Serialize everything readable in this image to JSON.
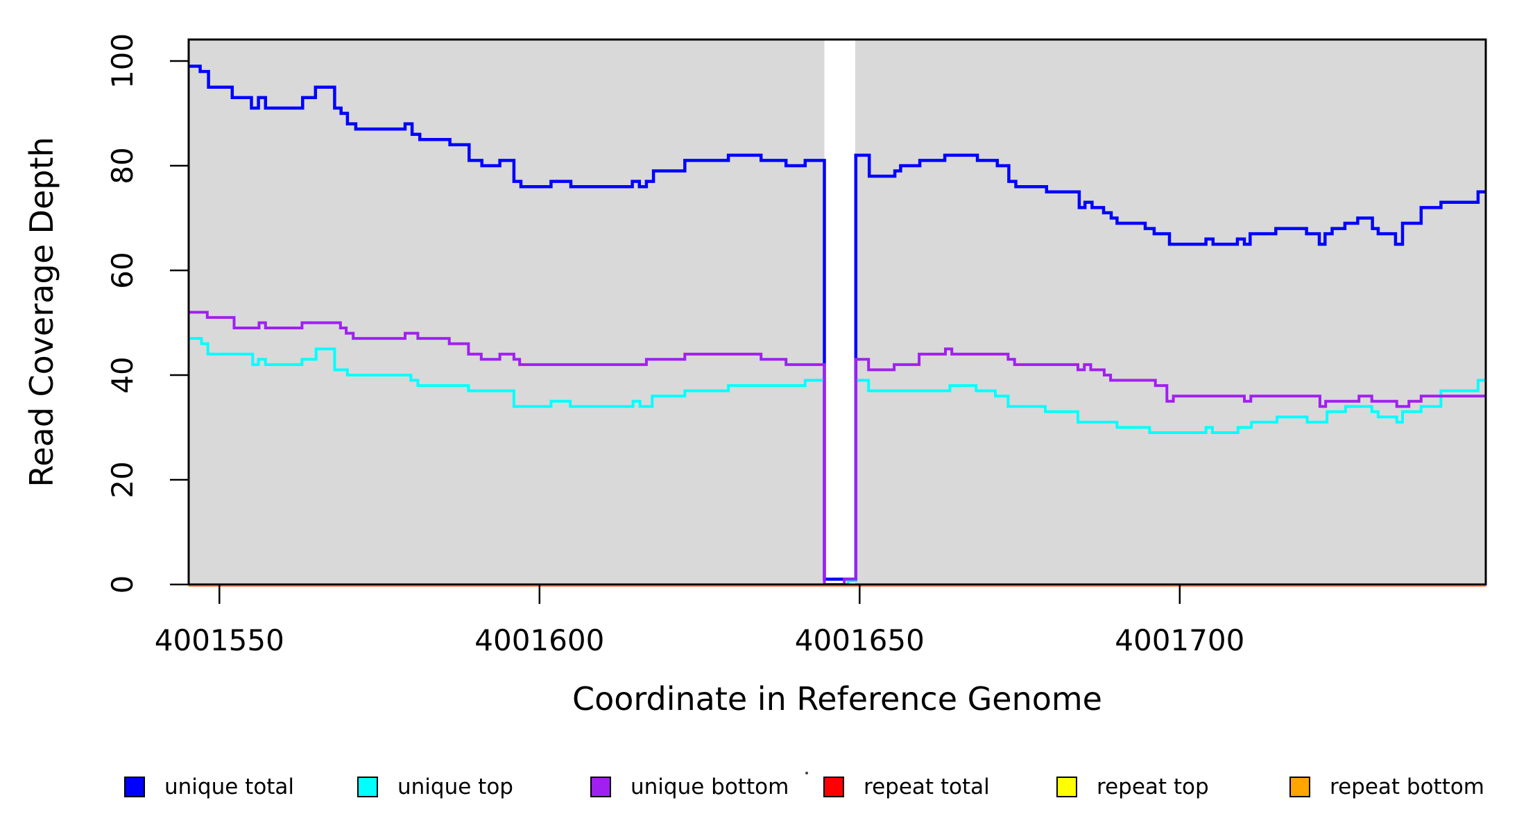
{
  "chart_data": {
    "type": "line",
    "subtype": "step",
    "title": "",
    "xlabel": "Coordinate in Reference Genome",
    "ylabel": "Read Coverage Depth",
    "xlim": [
      4001545.2,
      4001747.8
    ],
    "ylim": [
      0,
      104.1
    ],
    "x_ticks": [
      4001550,
      4001600,
      4001650,
      4001700
    ],
    "x_tick_labels": [
      "4001550",
      "4001600",
      "4001650",
      "4001700"
    ],
    "y_ticks": [
      0,
      20,
      40,
      60,
      80,
      100
    ],
    "y_tick_labels": [
      "0",
      "20",
      "40",
      "60",
      "80",
      "100"
    ],
    "grid": false,
    "legend_position": "bottom",
    "plot_bg_color": "#D9D9D9",
    "page_bg_color": "#FFFFFF",
    "box_color": "#000000",
    "missing_region": {
      "x_start": 4001644.5,
      "x_end": 4001649.3,
      "color": "#FFFFFF"
    },
    "series": [
      {
        "name": "unique total",
        "color": "#0000FF",
        "width": 4.5,
        "points": [
          [
            4001545.2,
            99
          ],
          [
            4001547,
            98
          ],
          [
            4001548.3,
            95
          ],
          [
            4001552,
            93
          ],
          [
            4001555,
            91
          ],
          [
            4001556.1,
            93
          ],
          [
            4001557.2,
            91
          ],
          [
            4001563,
            93
          ],
          [
            4001565,
            95
          ],
          [
            4001568,
            91
          ],
          [
            4001569,
            90
          ],
          [
            4001570,
            88
          ],
          [
            4001571.3,
            87
          ],
          [
            4001579,
            88
          ],
          [
            4001580.1,
            86
          ],
          [
            4001581.3,
            85
          ],
          [
            4001586,
            84
          ],
          [
            4001589,
            81
          ],
          [
            4001591,
            80
          ],
          [
            4001593.8,
            81
          ],
          [
            4001596,
            77
          ],
          [
            4001597.1,
            76
          ],
          [
            4001601.8,
            77
          ],
          [
            4001604.9,
            76
          ],
          [
            4001614.5,
            77
          ],
          [
            4001615.6,
            76
          ],
          [
            4001616.7,
            77
          ],
          [
            4001617.8,
            79
          ],
          [
            4001622.7,
            81
          ],
          [
            4001629.5,
            82
          ],
          [
            4001634.6,
            81
          ],
          [
            4001638.5,
            80
          ],
          [
            4001641.5,
            81
          ],
          [
            4001644.5,
            1
          ],
          [
            4001649.4,
            82
          ],
          [
            4001651.5,
            78
          ],
          [
            4001655.5,
            79
          ],
          [
            4001656.4,
            80
          ],
          [
            4001659.4,
            81
          ],
          [
            4001663.3,
            82
          ],
          [
            4001668.4,
            81
          ],
          [
            4001671.5,
            80
          ],
          [
            4001673.3,
            77
          ],
          [
            4001674.4,
            76
          ],
          [
            4001679.2,
            75
          ],
          [
            4001684.3,
            72
          ],
          [
            4001685.2,
            73
          ],
          [
            4001686.3,
            72
          ],
          [
            4001688.1,
            71
          ],
          [
            4001689.3,
            70
          ],
          [
            4001690.2,
            69
          ],
          [
            4001694.6,
            68
          ],
          [
            4001696,
            67
          ],
          [
            4001698.4,
            65
          ],
          [
            4001704.1,
            66
          ],
          [
            4001705.2,
            65
          ],
          [
            4001709,
            66
          ],
          [
            4001710.1,
            65
          ],
          [
            4001711,
            67
          ],
          [
            4001715,
            68
          ],
          [
            4001719.8,
            67
          ],
          [
            4001721.8,
            65
          ],
          [
            4001722.7,
            67
          ],
          [
            4001723.8,
            68
          ],
          [
            4001725.8,
            69
          ],
          [
            4001727.8,
            70
          ],
          [
            4001730.1,
            68
          ],
          [
            4001731,
            67
          ],
          [
            4001733.7,
            65
          ],
          [
            4001734.8,
            69
          ],
          [
            4001737.7,
            72
          ],
          [
            4001740.8,
            73
          ],
          [
            4001746.6,
            75
          ],
          [
            4001747.8,
            75
          ]
        ]
      },
      {
        "name": "unique top",
        "color": "#00FFFF",
        "width": 4,
        "points": [
          [
            4001545.2,
            47
          ],
          [
            4001547.2,
            46
          ],
          [
            4001548.2,
            44
          ],
          [
            4001555.2,
            42
          ],
          [
            4001556.1,
            43
          ],
          [
            4001557.2,
            42
          ],
          [
            4001562.9,
            43
          ],
          [
            4001565.1,
            45
          ],
          [
            4001568,
            41
          ],
          [
            4001570,
            40
          ],
          [
            4001579.9,
            39
          ],
          [
            4001581,
            38
          ],
          [
            4001588.9,
            37
          ],
          [
            4001596,
            34
          ],
          [
            4001601.8,
            35
          ],
          [
            4001604.8,
            34
          ],
          [
            4001614.6,
            35
          ],
          [
            4001615.7,
            34
          ],
          [
            4001617.6,
            36
          ],
          [
            4001622.7,
            37
          ],
          [
            4001629.5,
            38
          ],
          [
            4001641.5,
            39
          ],
          [
            4001644.5,
            0
          ],
          [
            4001648.2,
            0.7
          ],
          [
            4001649.4,
            39
          ],
          [
            4001651.4,
            37
          ],
          [
            4001664.1,
            38
          ],
          [
            4001668.2,
            37
          ],
          [
            4001671.2,
            36
          ],
          [
            4001673.2,
            34
          ],
          [
            4001679,
            33
          ],
          [
            4001684.1,
            31
          ],
          [
            4001690.2,
            30
          ],
          [
            4001695.3,
            29
          ],
          [
            4001704.1,
            30
          ],
          [
            4001705.1,
            29
          ],
          [
            4001709.1,
            30
          ],
          [
            4001711.2,
            31
          ],
          [
            4001715.2,
            32
          ],
          [
            4001719.9,
            31
          ],
          [
            4001723,
            33
          ],
          [
            4001725.9,
            34
          ],
          [
            4001730,
            33
          ],
          [
            4001731,
            32
          ],
          [
            4001733.9,
            31
          ],
          [
            4001734.8,
            33
          ],
          [
            4001737.7,
            34
          ],
          [
            4001740.8,
            37
          ],
          [
            4001746.6,
            39
          ],
          [
            4001747.8,
            39
          ]
        ]
      },
      {
        "name": "unique bottom",
        "color": "#A020F0",
        "width": 4,
        "points": [
          [
            4001545.2,
            52
          ],
          [
            4001548.1,
            51
          ],
          [
            4001552.3,
            49
          ],
          [
            4001556.2,
            50
          ],
          [
            4001557.2,
            49
          ],
          [
            4001562.9,
            50
          ],
          [
            4001568.9,
            49
          ],
          [
            4001569.8,
            48
          ],
          [
            4001570.9,
            47
          ],
          [
            4001579,
            48
          ],
          [
            4001581,
            47
          ],
          [
            4001585.9,
            46
          ],
          [
            4001588.9,
            44
          ],
          [
            4001590.9,
            43
          ],
          [
            4001593.8,
            44
          ],
          [
            4001596,
            43
          ],
          [
            4001596.9,
            42
          ],
          [
            4001616.7,
            43
          ],
          [
            4001622.7,
            44
          ],
          [
            4001634.6,
            43
          ],
          [
            4001638.5,
            42
          ],
          [
            4001644.5,
            0
          ],
          [
            4001647.6,
            1
          ],
          [
            4001649.4,
            43
          ],
          [
            4001651.4,
            41
          ],
          [
            4001655.4,
            42
          ],
          [
            4001659.3,
            44
          ],
          [
            4001663.4,
            45
          ],
          [
            4001664.4,
            44
          ],
          [
            4001673.2,
            43
          ],
          [
            4001674.2,
            42
          ],
          [
            4001684.1,
            41
          ],
          [
            4001685.1,
            42
          ],
          [
            4001686.1,
            41
          ],
          [
            4001688.2,
            40
          ],
          [
            4001689.2,
            39
          ],
          [
            4001696.2,
            38
          ],
          [
            4001698,
            35
          ],
          [
            4001699,
            36
          ],
          [
            4001710.1,
            35
          ],
          [
            4001711.1,
            36
          ],
          [
            4001721.9,
            34
          ],
          [
            4001722.8,
            35
          ],
          [
            4001728,
            36
          ],
          [
            4001730,
            35
          ],
          [
            4001733.9,
            34
          ],
          [
            4001735.8,
            35
          ],
          [
            4001737.7,
            36
          ],
          [
            4001747.8,
            36
          ]
        ]
      },
      {
        "name": "repeat total",
        "color": "#FF0000",
        "width": 3,
        "points": [
          [
            4001545.2,
            0
          ],
          [
            4001747.8,
            0
          ]
        ]
      },
      {
        "name": "repeat top",
        "color": "#FFFF00",
        "width": 3,
        "points": [
          [
            4001545.2,
            0
          ],
          [
            4001747.8,
            0
          ]
        ]
      },
      {
        "name": "repeat bottom",
        "color": "#FFA500",
        "width": 3,
        "points": [
          [
            4001545.2,
            0
          ],
          [
            4001747.8,
            0
          ]
        ]
      }
    ],
    "legend": [
      {
        "label": "unique total",
        "color": "#0000FF"
      },
      {
        "label": "unique top",
        "color": "#00FFFF"
      },
      {
        "label": "unique bottom",
        "color": "#A020F0"
      },
      {
        "label": "repeat total",
        "color": "#FF0000"
      },
      {
        "label": "repeat top",
        "color": "#FFFF00"
      },
      {
        "label": "repeat bottom",
        "color": "#FFA500"
      }
    ]
  }
}
